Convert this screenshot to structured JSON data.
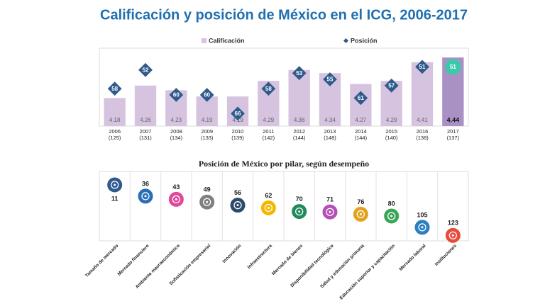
{
  "chart_data": [
    {
      "type": "bar_rank",
      "title": "Calificación y posición de México en el ICG, 2006-2017",
      "categories": [
        "2006",
        "2007",
        "2008",
        "2009",
        "2010",
        "2011",
        "2012",
        "2013",
        "2014",
        "2015",
        "2016",
        "2017"
      ],
      "category_notes": [
        "(125)",
        "(131)",
        "(134)",
        "(133)",
        "(139)",
        "(142)",
        "(144)",
        "(148)",
        "(144)",
        "(140)",
        "(138)",
        "(137)"
      ],
      "series": [
        {
          "name": "Calificación",
          "color": "#d6c3df",
          "colors": [
            "#d6c3df",
            "#d6c3df",
            "#d6c3df",
            "#d6c3df",
            "#d6c3df",
            "#d6c3df",
            "#d6c3df",
            "#d6c3df",
            "#d6c3df",
            "#d6c3df",
            "#d6c3df",
            "#a991c6"
          ],
          "values": [
            4.18,
            4.26,
            4.23,
            4.19,
            4.19,
            4.29,
            4.36,
            4.34,
            4.27,
            4.29,
            4.41,
            4.44
          ]
        },
        {
          "name": "Posición",
          "color": "#2f5b8c",
          "axis": "y2",
          "colors": [
            "#2f5b8c",
            "#2f5b8c",
            "#2f5b8c",
            "#2f5b8c",
            "#2f5b8c",
            "#2f5b8c",
            "#2f5b8c",
            "#2f5b8c",
            "#2f5b8c",
            "#2f5b8c",
            "#2f5b8c",
            "#3cc9a9"
          ],
          "values": [
            58,
            52,
            60,
            60,
            66,
            58,
            53,
            55,
            61,
            57,
            51,
            51
          ]
        }
      ],
      "ylim": [
        4.0,
        4.5
      ],
      "y2lim": [
        70,
        45
      ],
      "legend": "top"
    },
    {
      "type": "pillar_rank",
      "title": "Posición de México por pilar,  según desempeño",
      "categories": [
        "Tamaño de mercado",
        "Mercado financiero",
        "Ambiente macroeconómico",
        "Sofisticación empresarial",
        "Innovación",
        "Infraestructura",
        "Mercado de bienes",
        "Disponibilidad tecnológica",
        "Salud y educación primaria",
        "Educación superior y capacitación",
        "Mercado laboral",
        "Instituciones"
      ],
      "values": [
        11,
        36,
        43,
        49,
        56,
        62,
        70,
        71,
        76,
        80,
        105,
        123
      ],
      "colors": [
        "#2f5b8c",
        "#2a6fb6",
        "#e0489a",
        "#7f7f7f",
        "#2e4a6b",
        "#f2b800",
        "#1f8a5a",
        "#b450b8",
        "#e2a21f",
        "#3aa655",
        "#2b80c2",
        "#e64b3c"
      ],
      "ylim": [
        0,
        135
      ]
    }
  ]
}
